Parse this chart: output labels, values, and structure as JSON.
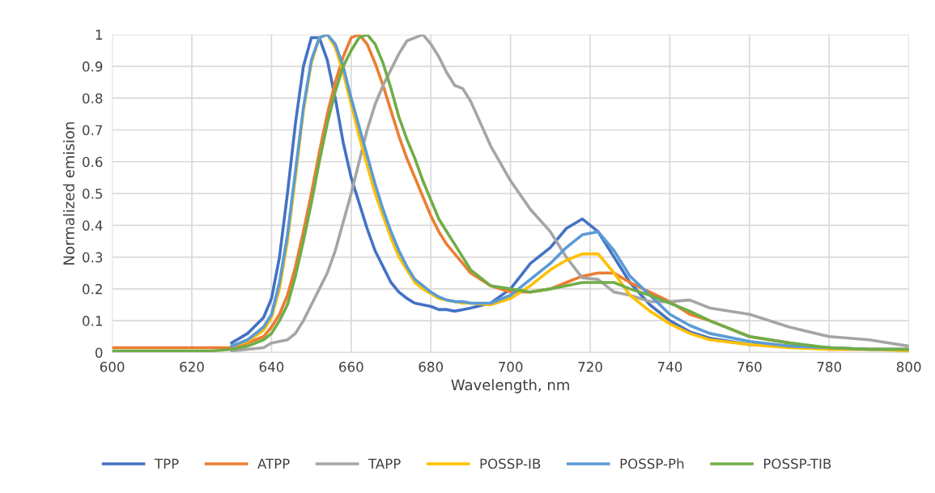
{
  "chart_data": {
    "type": "line",
    "xlabel": "Wavelength, nm",
    "ylabel": "Normalized emision",
    "x": [
      600,
      610,
      620,
      625,
      630,
      634,
      638,
      640,
      642,
      644,
      646,
      648,
      650,
      652,
      654,
      656,
      658,
      660,
      662,
      664,
      666,
      668,
      670,
      672,
      674,
      676,
      678,
      680,
      682,
      684,
      686,
      688,
      690,
      695,
      700,
      705,
      710,
      714,
      718,
      722,
      726,
      730,
      735,
      740,
      745,
      750,
      760,
      770,
      780,
      790,
      800
    ],
    "series": [
      {
        "name": "TPP",
        "color": "#4472c4",
        "values": [
          null,
          null,
          null,
          null,
          0.03,
          0.06,
          0.11,
          0.17,
          0.3,
          0.5,
          0.72,
          0.9,
          0.99,
          0.99,
          0.92,
          0.8,
          0.66,
          0.55,
          0.47,
          0.39,
          0.32,
          0.27,
          0.22,
          0.19,
          0.17,
          0.155,
          0.15,
          0.145,
          0.135,
          0.135,
          0.13,
          0.135,
          0.14,
          0.155,
          0.2,
          0.28,
          0.33,
          0.39,
          0.42,
          0.38,
          0.3,
          0.22,
          0.15,
          0.1,
          0.065,
          0.045,
          0.025,
          0.02,
          0.015,
          0.01,
          0.01
        ]
      },
      {
        "name": "ATPP",
        "color": "#ed7d31",
        "values": [
          0.015,
          0.015,
          0.015,
          0.015,
          0.015,
          0.03,
          0.05,
          0.08,
          0.12,
          0.18,
          0.27,
          0.38,
          0.5,
          0.63,
          0.75,
          0.85,
          0.93,
          0.99,
          1.0,
          0.97,
          0.91,
          0.84,
          0.76,
          0.68,
          0.61,
          0.55,
          0.49,
          0.43,
          0.38,
          0.34,
          0.31,
          0.28,
          0.25,
          0.21,
          0.19,
          0.19,
          0.2,
          0.22,
          0.24,
          0.25,
          0.25,
          0.22,
          0.19,
          0.16,
          0.12,
          0.1,
          0.05,
          0.03,
          0.01,
          0.01,
          0.01
        ]
      },
      {
        "name": "TAPP",
        "color": "#a5a5a5",
        "values": [
          null,
          null,
          null,
          null,
          0.005,
          0.01,
          0.015,
          0.03,
          0.035,
          0.04,
          0.06,
          0.1,
          0.15,
          0.2,
          0.25,
          0.32,
          0.41,
          0.5,
          0.6,
          0.7,
          0.78,
          0.84,
          0.89,
          0.94,
          0.98,
          0.99,
          1.0,
          0.97,
          0.93,
          0.88,
          0.84,
          0.83,
          0.79,
          0.65,
          0.54,
          0.45,
          0.38,
          0.3,
          0.235,
          0.23,
          0.19,
          0.18,
          0.16,
          0.16,
          0.165,
          0.14,
          0.12,
          0.08,
          0.05,
          0.04,
          0.02
        ]
      },
      {
        "name": "POSSP-IB",
        "color": "#ffc000",
        "values": [
          null,
          null,
          null,
          null,
          0.02,
          0.035,
          0.07,
          0.11,
          0.2,
          0.35,
          0.55,
          0.76,
          0.91,
          0.99,
          1.0,
          0.96,
          0.88,
          0.78,
          0.68,
          0.59,
          0.5,
          0.43,
          0.36,
          0.3,
          0.26,
          0.22,
          0.2,
          0.185,
          0.17,
          0.165,
          0.16,
          0.155,
          0.155,
          0.15,
          0.17,
          0.21,
          0.26,
          0.29,
          0.31,
          0.31,
          0.25,
          0.18,
          0.13,
          0.09,
          0.06,
          0.04,
          0.025,
          0.015,
          0.01,
          0.01,
          0.005
        ]
      },
      {
        "name": "POSSP-Ph",
        "color": "#5b9bd5",
        "values": [
          null,
          null,
          null,
          null,
          0.02,
          0.04,
          0.08,
          0.12,
          0.22,
          0.37,
          0.57,
          0.77,
          0.92,
          0.99,
          1.0,
          0.97,
          0.9,
          0.8,
          0.71,
          0.62,
          0.53,
          0.45,
          0.38,
          0.32,
          0.27,
          0.23,
          0.21,
          0.19,
          0.175,
          0.165,
          0.16,
          0.16,
          0.155,
          0.155,
          0.18,
          0.23,
          0.28,
          0.33,
          0.37,
          0.38,
          0.32,
          0.24,
          0.18,
          0.12,
          0.085,
          0.06,
          0.035,
          0.02,
          0.015,
          0.01,
          0.01
        ]
      },
      {
        "name": "POSSP-TIB",
        "color": "#70ad47",
        "values": [
          0.005,
          0.005,
          0.005,
          0.005,
          0.01,
          0.02,
          0.04,
          0.06,
          0.1,
          0.15,
          0.24,
          0.35,
          0.47,
          0.6,
          0.72,
          0.82,
          0.9,
          0.95,
          0.99,
          1.0,
          0.97,
          0.91,
          0.83,
          0.74,
          0.67,
          0.61,
          0.54,
          0.48,
          0.42,
          0.38,
          0.34,
          0.3,
          0.26,
          0.21,
          0.2,
          0.19,
          0.2,
          0.21,
          0.22,
          0.22,
          0.22,
          0.2,
          0.18,
          0.155,
          0.13,
          0.1,
          0.05,
          0.03,
          0.015,
          0.01,
          0.01
        ]
      }
    ],
    "xlim": [
      600,
      800
    ],
    "xticks": [
      600,
      620,
      640,
      660,
      680,
      700,
      720,
      740,
      760,
      780,
      800
    ],
    "ylim": [
      0,
      1
    ],
    "yticks": [
      0,
      0.1,
      0.2,
      0.3,
      0.4,
      0.5,
      0.6,
      0.7,
      0.8,
      0.9,
      1
    ],
    "grid": true,
    "legend": "bottom",
    "marker": "none",
    "line_style": "solid"
  }
}
